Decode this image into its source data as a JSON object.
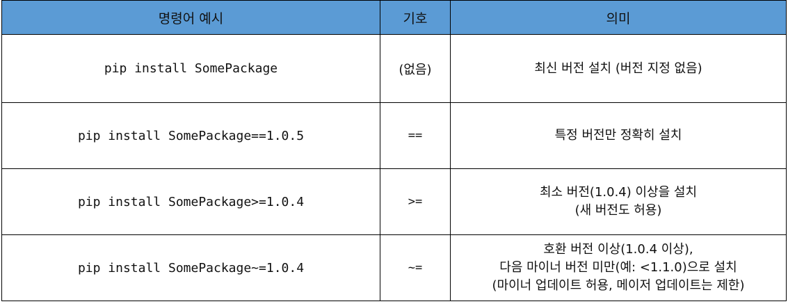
{
  "header": {
    "col1": "명령어 예시",
    "col2": "기호",
    "col3": "의미"
  },
  "rows": [
    {
      "command": "pip install SomePackage",
      "symbol": "(없음)",
      "meaning": [
        "최신 버전 설치 (버전 지정 없음)"
      ]
    },
    {
      "command": "pip install SomePackage==1.0.5",
      "symbol": "==",
      "meaning": [
        "특정 버전만 정확히 설치"
      ]
    },
    {
      "command": "pip install SomePackage>=1.0.4",
      "symbol": ">=",
      "meaning": [
        "최소 버전(1.0.4) 이상을 설치",
        "(새 버전도 허용)"
      ]
    },
    {
      "command": "pip install SomePackage~=1.0.4",
      "symbol": "~=",
      "meaning": [
        "호환 버전 이상(1.0.4 이상),",
        "다음 마이너 버전 미만(예: <1.1.0)으로 설치",
        "(마이너 업데이트 허용, 메이저 업데이트는 제한)"
      ]
    }
  ],
  "colors": {
    "header_background": "#5b9bd5",
    "border": "#000000"
  }
}
